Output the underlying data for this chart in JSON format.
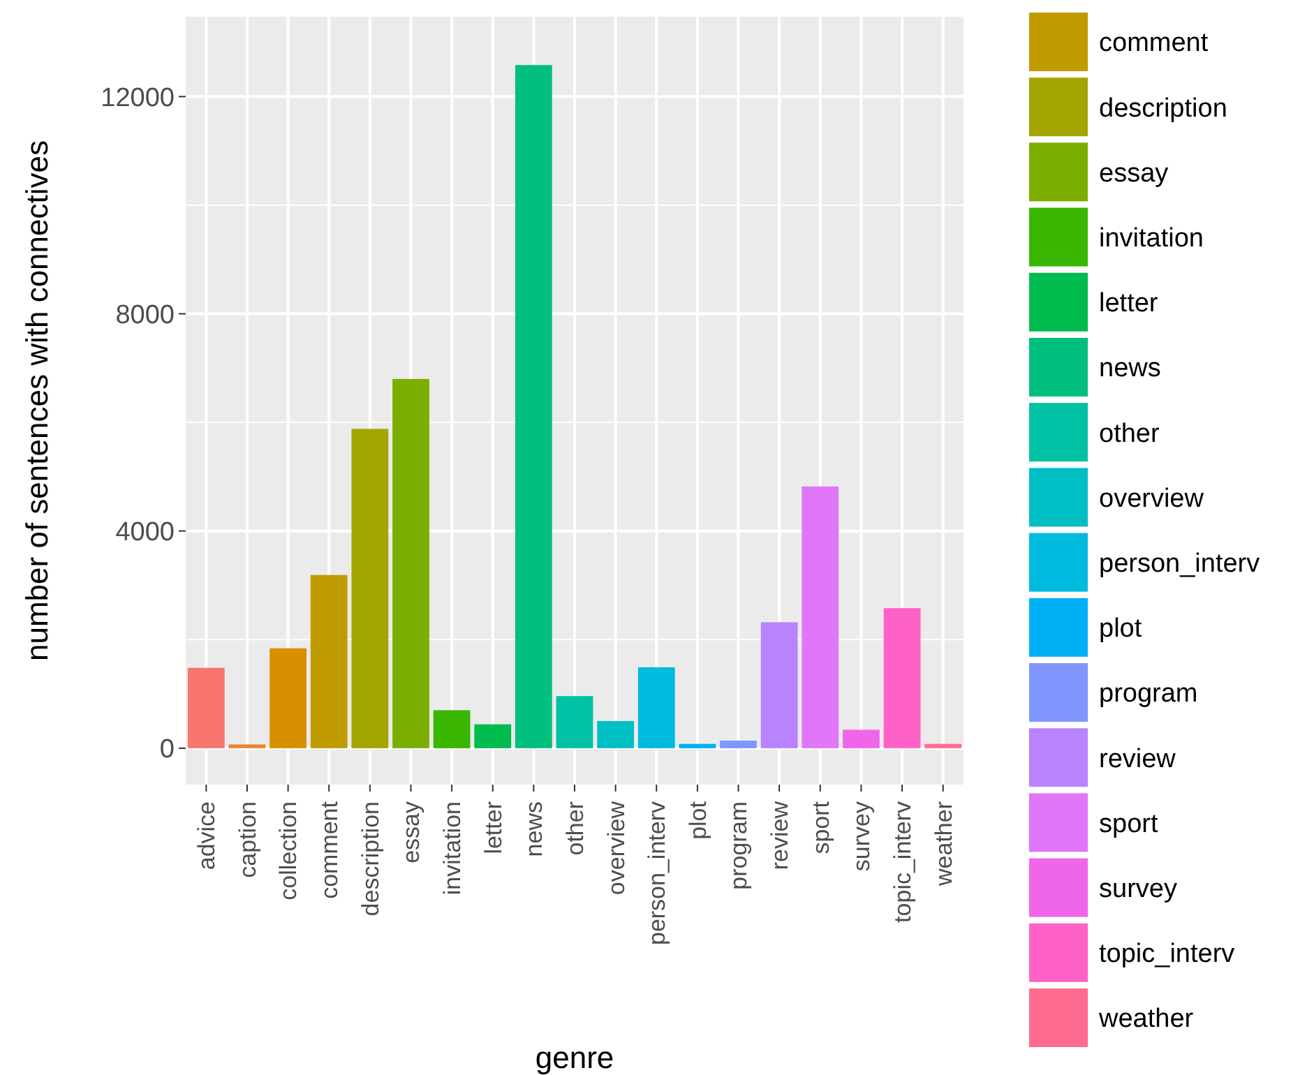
{
  "chart_data": {
    "type": "bar",
    "xlabel": "genre",
    "ylabel": "number of sentences with connectives",
    "categories": [
      "advice",
      "caption",
      "collection",
      "comment",
      "description",
      "essay",
      "invitation",
      "letter",
      "news",
      "other",
      "overview",
      "person_interv",
      "plot",
      "program",
      "review",
      "sport",
      "survey",
      "topic_interv",
      "weather"
    ],
    "series": [
      {
        "color": "#f8766d",
        "values": [
          1480,
          null,
          null,
          null,
          null,
          null,
          null,
          null,
          null,
          null,
          null,
          null,
          null,
          null,
          null,
          null,
          null,
          null,
          null
        ]
      },
      {
        "color": "#ea8331",
        "values": [
          null,
          70,
          null,
          null,
          null,
          null,
          null,
          null,
          null,
          null,
          null,
          null,
          null,
          null,
          null,
          null,
          null,
          null,
          null
        ]
      },
      {
        "color": "#d89000",
        "values": [
          null,
          null,
          1840,
          null,
          null,
          null,
          null,
          null,
          null,
          null,
          null,
          null,
          null,
          null,
          null,
          null,
          null,
          null,
          null
        ]
      },
      {
        "name": "comment",
        "color": "#c09b00",
        "values": [
          null,
          null,
          null,
          3190,
          null,
          null,
          null,
          null,
          null,
          null,
          null,
          null,
          null,
          null,
          null,
          null,
          null,
          null,
          null
        ]
      },
      {
        "name": "description",
        "color": "#a3a500",
        "values": [
          null,
          null,
          null,
          null,
          5880,
          null,
          null,
          null,
          null,
          null,
          null,
          null,
          null,
          null,
          null,
          null,
          null,
          null,
          null
        ]
      },
      {
        "name": "essay",
        "color": "#7cae00",
        "values": [
          null,
          null,
          null,
          null,
          null,
          6800,
          null,
          null,
          null,
          null,
          null,
          null,
          null,
          null,
          null,
          null,
          null,
          null,
          null
        ]
      },
      {
        "name": "invitation",
        "color": "#39b600",
        "values": [
          null,
          null,
          null,
          null,
          null,
          null,
          700,
          null,
          null,
          null,
          null,
          null,
          null,
          null,
          null,
          null,
          null,
          null,
          null
        ]
      },
      {
        "name": "letter",
        "color": "#00bb4e",
        "values": [
          null,
          null,
          null,
          null,
          null,
          null,
          null,
          440,
          null,
          null,
          null,
          null,
          null,
          null,
          null,
          null,
          null,
          null,
          null
        ]
      },
      {
        "name": "news",
        "color": "#00bf7d",
        "values": [
          null,
          null,
          null,
          null,
          null,
          null,
          null,
          null,
          12580,
          null,
          null,
          null,
          null,
          null,
          null,
          null,
          null,
          null,
          null
        ]
      },
      {
        "name": "other",
        "color": "#00c1a3",
        "values": [
          null,
          null,
          null,
          null,
          null,
          null,
          null,
          null,
          null,
          960,
          null,
          null,
          null,
          null,
          null,
          null,
          null,
          null,
          null
        ]
      },
      {
        "name": "overview",
        "color": "#00bfc4",
        "values": [
          null,
          null,
          null,
          null,
          null,
          null,
          null,
          null,
          null,
          null,
          500,
          null,
          null,
          null,
          null,
          null,
          null,
          null,
          null
        ]
      },
      {
        "name": "person_interv",
        "color": "#00bae0",
        "values": [
          null,
          null,
          null,
          null,
          null,
          null,
          null,
          null,
          null,
          null,
          null,
          1490,
          null,
          null,
          null,
          null,
          null,
          null,
          null
        ]
      },
      {
        "name": "plot",
        "color": "#00b0f6",
        "values": [
          null,
          null,
          null,
          null,
          null,
          null,
          null,
          null,
          null,
          null,
          null,
          null,
          80,
          null,
          null,
          null,
          null,
          null,
          null
        ]
      },
      {
        "name": "program",
        "color": "#7f96ff",
        "values": [
          null,
          null,
          null,
          null,
          null,
          null,
          null,
          null,
          null,
          null,
          null,
          null,
          null,
          140,
          null,
          null,
          null,
          null,
          null
        ]
      },
      {
        "name": "review",
        "color": "#b983ff",
        "values": [
          null,
          null,
          null,
          null,
          null,
          null,
          null,
          null,
          null,
          null,
          null,
          null,
          null,
          null,
          2320,
          null,
          null,
          null,
          null
        ]
      },
      {
        "name": "sport",
        "color": "#e076f8",
        "values": [
          null,
          null,
          null,
          null,
          null,
          null,
          null,
          null,
          null,
          null,
          null,
          null,
          null,
          null,
          null,
          4820,
          null,
          null,
          null
        ]
      },
      {
        "name": "survey",
        "color": "#f066ea",
        "values": [
          null,
          null,
          null,
          null,
          null,
          null,
          null,
          null,
          null,
          null,
          null,
          null,
          null,
          null,
          null,
          null,
          340,
          null,
          null
        ]
      },
      {
        "name": "topic_interv",
        "color": "#ff62c7",
        "values": [
          null,
          null,
          null,
          null,
          null,
          null,
          null,
          null,
          null,
          null,
          null,
          null,
          null,
          null,
          null,
          null,
          null,
          2580,
          null
        ]
      },
      {
        "name": "weather",
        "color": "#ff6c91",
        "values": [
          null,
          null,
          null,
          null,
          null,
          null,
          null,
          null,
          null,
          null,
          null,
          null,
          null,
          null,
          null,
          null,
          null,
          null,
          80
        ]
      }
    ],
    "ylim": [
      -670,
      13470
    ],
    "yticks": [
      0,
      4000,
      8000,
      12000
    ],
    "grid": true,
    "legend": "right"
  }
}
